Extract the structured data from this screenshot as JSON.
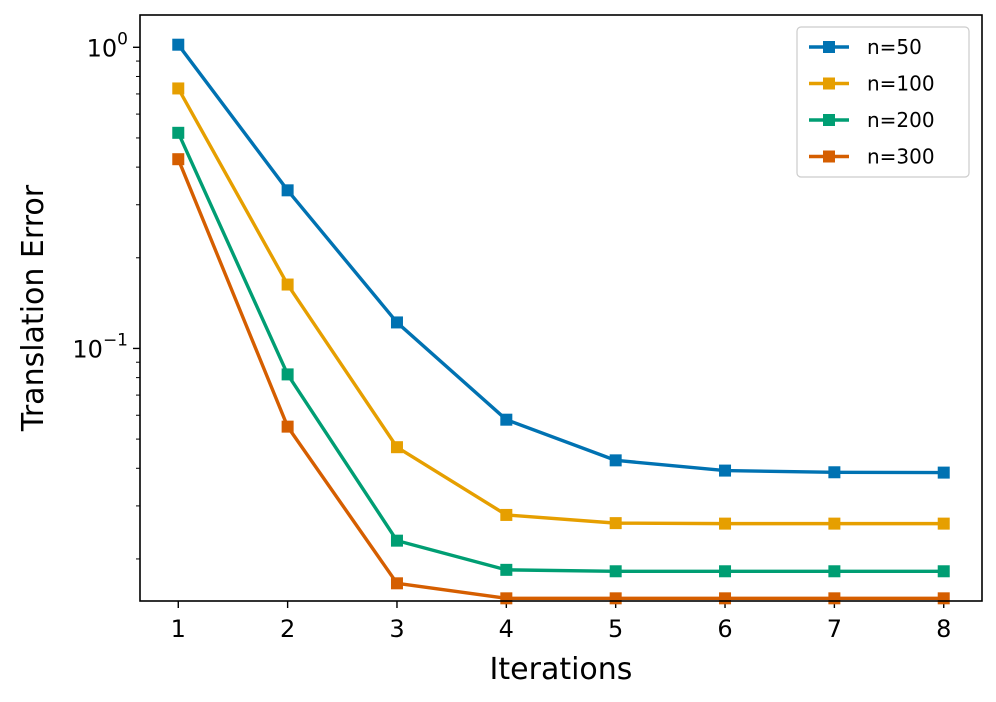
{
  "chart_data": {
    "type": "line",
    "title": "",
    "xlabel": "Iterations",
    "ylabel": "Translation Error",
    "yscale": "log",
    "x": [
      1,
      2,
      3,
      4,
      5,
      6,
      7,
      8
    ],
    "xlim": [
      0.65,
      8.35
    ],
    "ylim": [
      0.0145,
      1.28
    ],
    "xticks": [
      1,
      2,
      3,
      4,
      5,
      6,
      7,
      8
    ],
    "yticks": [
      {
        "value": 1,
        "base": "10",
        "exp": "0"
      },
      {
        "value": 0.1,
        "base": "10",
        "exp": "−1"
      }
    ],
    "legend_position": "top-right",
    "series": [
      {
        "name": "n=50",
        "color": "#0072b2",
        "values": [
          1.02,
          0.335,
          0.122,
          0.058,
          0.0425,
          0.0393,
          0.0388,
          0.0387
        ]
      },
      {
        "name": "n=100",
        "color": "#e69f00",
        "values": [
          0.73,
          0.163,
          0.047,
          0.028,
          0.0263,
          0.0262,
          0.0262,
          0.0262
        ]
      },
      {
        "name": "n=200",
        "color": "#009e73",
        "values": [
          0.52,
          0.082,
          0.023,
          0.0184,
          0.0182,
          0.0182,
          0.0182,
          0.0182
        ]
      },
      {
        "name": "n=300",
        "color": "#d55e00",
        "values": [
          0.425,
          0.055,
          0.0166,
          0.0148,
          0.0148,
          0.0148,
          0.0148,
          0.0148
        ]
      }
    ]
  }
}
